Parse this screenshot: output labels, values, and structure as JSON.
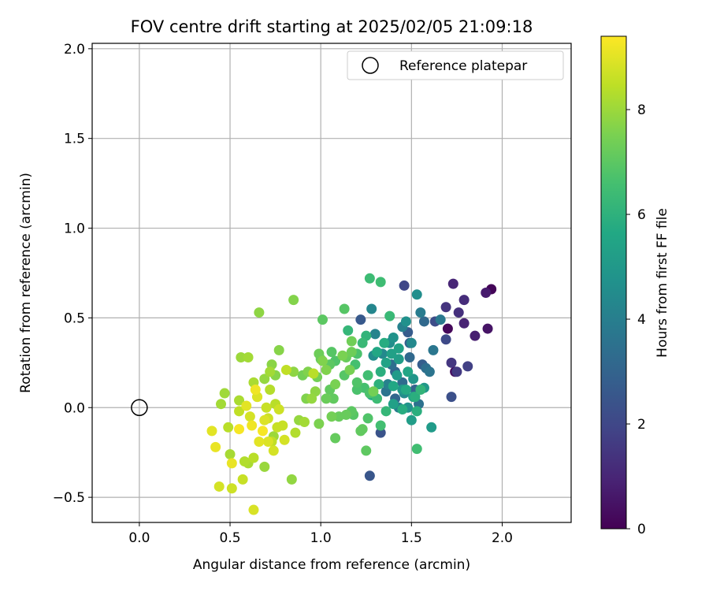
{
  "chart_data": {
    "type": "scatter",
    "title": "FOV centre drift starting at 2025/02/05 21:09:18",
    "xlabel": "Angular distance from reference (arcmin)",
    "ylabel": "Rotation from reference (arcmin)",
    "xlim": [
      -0.26,
      2.38
    ],
    "ylim": [
      -0.64,
      2.03
    ],
    "xticks": [
      0.0,
      0.5,
      1.0,
      1.5,
      2.0
    ],
    "xtick_labels": [
      "0.0",
      "0.5",
      "1.0",
      "1.5",
      "2.0"
    ],
    "yticks": [
      -0.5,
      0.0,
      0.5,
      1.0,
      1.5,
      2.0
    ],
    "ytick_labels": [
      "−0.5",
      "0.0",
      "0.5",
      "1.0",
      "1.5",
      "2.0"
    ],
    "grid": true,
    "legend": {
      "placement": "top-right",
      "entries": [
        "Reference platepar"
      ]
    },
    "reference_point": {
      "x": 0.0,
      "y": 0.0,
      "label": "Reference platepar"
    },
    "colorbar": {
      "label": "Hours from first FF file",
      "colormap": "viridis",
      "range": [
        0,
        9.4
      ],
      "ticks": [
        0,
        2,
        4,
        6,
        8
      ],
      "tick_labels": [
        "0",
        "2",
        "4",
        "6",
        "8"
      ]
    },
    "points": [
      {
        "x": 1.94,
        "y": 0.66,
        "hours": 0.1
      },
      {
        "x": 1.7,
        "y": 0.44,
        "hours": 0.2
      },
      {
        "x": 1.74,
        "y": 0.2,
        "hours": 0.3
      },
      {
        "x": 1.92,
        "y": 0.44,
        "hours": 0.5
      },
      {
        "x": 1.91,
        "y": 0.64,
        "hours": 0.7
      },
      {
        "x": 1.85,
        "y": 0.4,
        "hours": 0.8
      },
      {
        "x": 1.79,
        "y": 0.47,
        "hours": 0.9
      },
      {
        "x": 1.73,
        "y": 0.69,
        "hours": 1.0
      },
      {
        "x": 1.79,
        "y": 0.6,
        "hours": 1.2
      },
      {
        "x": 1.76,
        "y": 0.53,
        "hours": 1.3
      },
      {
        "x": 1.69,
        "y": 0.56,
        "hours": 1.4
      },
      {
        "x": 1.72,
        "y": 0.25,
        "hours": 1.5
      },
      {
        "x": 1.75,
        "y": 0.2,
        "hours": 1.6
      },
      {
        "x": 1.81,
        "y": 0.23,
        "hours": 1.8
      },
      {
        "x": 1.46,
        "y": 0.68,
        "hours": 2.0
      },
      {
        "x": 1.69,
        "y": 0.38,
        "hours": 2.1
      },
      {
        "x": 1.63,
        "y": 0.48,
        "hours": 2.2
      },
      {
        "x": 1.72,
        "y": 0.06,
        "hours": 2.3
      },
      {
        "x": 1.33,
        "y": -0.14,
        "hours": 2.4
      },
      {
        "x": 1.27,
        "y": -0.38,
        "hours": 2.5
      },
      {
        "x": 1.22,
        "y": 0.49,
        "hours": 2.6
      },
      {
        "x": 1.48,
        "y": 0.42,
        "hours": 2.7
      },
      {
        "x": 1.56,
        "y": 0.24,
        "hours": 2.8
      },
      {
        "x": 1.52,
        "y": 0.1,
        "hours": 3.0
      },
      {
        "x": 1.41,
        "y": 0.05,
        "hours": 3.1
      },
      {
        "x": 1.49,
        "y": 0.28,
        "hours": 3.2
      },
      {
        "x": 1.45,
        "y": 0.14,
        "hours": 3.3
      },
      {
        "x": 1.39,
        "y": 0.24,
        "hours": 3.4
      },
      {
        "x": 1.54,
        "y": 0.02,
        "hours": 3.5
      },
      {
        "x": 1.6,
        "y": 0.2,
        "hours": 3.6
      },
      {
        "x": 1.62,
        "y": 0.32,
        "hours": 3.7
      },
      {
        "x": 1.66,
        "y": 0.49,
        "hours": 3.8
      },
      {
        "x": 1.55,
        "y": 0.53,
        "hours": 3.9
      },
      {
        "x": 1.43,
        "y": 0.0,
        "hours": 4.0
      },
      {
        "x": 1.37,
        "y": 0.13,
        "hours": 4.1
      },
      {
        "x": 1.3,
        "y": 0.41,
        "hours": 4.2
      },
      {
        "x": 1.28,
        "y": 0.55,
        "hours": 4.3
      },
      {
        "x": 1.34,
        "y": 0.3,
        "hours": 4.4
      },
      {
        "x": 1.46,
        "y": 0.08,
        "hours": 4.5
      },
      {
        "x": 1.53,
        "y": 0.63,
        "hours": 4.6
      },
      {
        "x": 1.47,
        "y": 0.48,
        "hours": 4.7
      },
      {
        "x": 1.4,
        "y": 0.39,
        "hours": 4.8
      },
      {
        "x": 1.51,
        "y": 0.16,
        "hours": 4.9
      },
      {
        "x": 1.57,
        "y": 0.11,
        "hours": 5.0
      },
      {
        "x": 1.61,
        "y": -0.11,
        "hours": 5.1
      },
      {
        "x": 1.5,
        "y": -0.07,
        "hours": 5.2
      },
      {
        "x": 1.4,
        "y": 0.02,
        "hours": 5.3
      },
      {
        "x": 1.36,
        "y": 0.25,
        "hours": 5.4
      },
      {
        "x": 1.48,
        "y": 0.2,
        "hours": 5.5
      },
      {
        "x": 1.31,
        "y": 0.31,
        "hours": 5.6
      },
      {
        "x": 1.28,
        "y": 0.07,
        "hours": 5.7
      },
      {
        "x": 1.45,
        "y": -0.01,
        "hours": 5.8
      },
      {
        "x": 1.53,
        "y": -0.02,
        "hours": 5.9
      },
      {
        "x": 1.32,
        "y": 0.13,
        "hours": 6.0
      },
      {
        "x": 1.25,
        "y": 0.4,
        "hours": 6.1
      },
      {
        "x": 1.15,
        "y": 0.43,
        "hours": 6.2
      },
      {
        "x": 1.38,
        "y": 0.51,
        "hours": 6.3
      },
      {
        "x": 1.27,
        "y": 0.72,
        "hours": 6.4
      },
      {
        "x": 1.33,
        "y": 0.7,
        "hours": 6.45
      },
      {
        "x": 1.53,
        "y": -0.23,
        "hours": 6.5
      },
      {
        "x": 1.33,
        "y": -0.1,
        "hours": 6.55
      },
      {
        "x": 1.24,
        "y": 0.11,
        "hours": 6.6
      },
      {
        "x": 1.2,
        "y": 0.3,
        "hours": 6.7
      },
      {
        "x": 1.08,
        "y": 0.26,
        "hours": 6.8
      },
      {
        "x": 1.13,
        "y": 0.55,
        "hours": 6.9
      },
      {
        "x": 1.01,
        "y": 0.49,
        "hours": 7.0
      },
      {
        "x": 1.25,
        "y": -0.24,
        "hours": 7.05
      },
      {
        "x": 1.22,
        "y": -0.13,
        "hours": 7.1
      },
      {
        "x": 1.08,
        "y": -0.17,
        "hours": 7.15
      },
      {
        "x": 1.14,
        "y": -0.04,
        "hours": 7.2
      },
      {
        "x": 1.03,
        "y": 0.05,
        "hours": 7.25
      },
      {
        "x": 0.99,
        "y": 0.3,
        "hours": 7.3
      },
      {
        "x": 1.17,
        "y": 0.37,
        "hours": 7.35
      },
      {
        "x": 1.29,
        "y": 0.09,
        "hours": 7.4
      },
      {
        "x": 1.16,
        "y": 0.21,
        "hours": 7.45
      },
      {
        "x": 1.08,
        "y": 0.13,
        "hours": 7.5
      },
      {
        "x": 0.99,
        "y": -0.09,
        "hours": 7.55
      },
      {
        "x": 0.93,
        "y": 0.2,
        "hours": 7.6
      },
      {
        "x": 0.85,
        "y": 0.6,
        "hours": 7.65
      },
      {
        "x": 0.77,
        "y": 0.32,
        "hours": 7.7
      },
      {
        "x": 0.73,
        "y": 0.24,
        "hours": 7.75
      },
      {
        "x": 0.66,
        "y": 0.53,
        "hours": 7.8
      },
      {
        "x": 0.84,
        "y": -0.4,
        "hours": 7.85
      },
      {
        "x": 0.88,
        "y": -0.07,
        "hours": 7.9
      },
      {
        "x": 0.69,
        "y": -0.33,
        "hours": 7.95
      },
      {
        "x": 0.56,
        "y": 0.28,
        "hours": 8.0
      },
      {
        "x": 0.47,
        "y": 0.08,
        "hours": 8.05
      },
      {
        "x": 0.45,
        "y": 0.02,
        "hours": 8.1
      },
      {
        "x": 0.5,
        "y": -0.26,
        "hours": 8.15
      },
      {
        "x": 0.63,
        "y": 0.14,
        "hours": 8.2
      },
      {
        "x": 0.58,
        "y": -0.3,
        "hours": 8.3
      },
      {
        "x": 0.72,
        "y": 0.1,
        "hours": 8.35
      },
      {
        "x": 0.96,
        "y": 0.19,
        "hours": 8.4
      },
      {
        "x": 0.81,
        "y": 0.21,
        "hours": 8.5
      },
      {
        "x": 0.57,
        "y": -0.4,
        "hours": 8.6
      },
      {
        "x": 0.51,
        "y": -0.45,
        "hours": 8.7
      },
      {
        "x": 0.44,
        "y": -0.44,
        "hours": 8.8
      },
      {
        "x": 0.63,
        "y": -0.57,
        "hours": 8.85
      },
      {
        "x": 0.4,
        "y": -0.13,
        "hours": 9.0
      },
      {
        "x": 0.42,
        "y": -0.22,
        "hours": 9.1
      },
      {
        "x": 0.64,
        "y": 0.1,
        "hours": 9.2
      },
      {
        "x": 0.68,
        "y": -0.13,
        "hours": 9.3
      },
      {
        "x": 1.23,
        "y": 0.36,
        "hours": 6.3
      },
      {
        "x": 1.19,
        "y": 0.24,
        "hours": 6.6
      },
      {
        "x": 1.06,
        "y": 0.31,
        "hours": 6.9
      },
      {
        "x": 0.98,
        "y": 0.17,
        "hours": 7.4
      },
      {
        "x": 1.07,
        "y": 0.05,
        "hours": 7.1
      },
      {
        "x": 1.17,
        "y": -0.02,
        "hours": 7.0
      },
      {
        "x": 1.27,
        "y": 0.08,
        "hours": 6.7
      },
      {
        "x": 1.36,
        "y": -0.02,
        "hours": 6.2
      },
      {
        "x": 1.43,
        "y": 0.33,
        "hours": 5.4
      },
      {
        "x": 1.35,
        "y": 0.36,
        "hours": 5.8
      },
      {
        "x": 1.43,
        "y": 0.27,
        "hours": 5.2
      },
      {
        "x": 1.4,
        "y": 0.12,
        "hours": 5.6
      },
      {
        "x": 1.48,
        "y": 0.0,
        "hours": 4.8
      },
      {
        "x": 1.5,
        "y": 0.36,
        "hours": 4.4
      },
      {
        "x": 1.45,
        "y": 0.45,
        "hours": 4.1
      },
      {
        "x": 1.38,
        "y": 0.36,
        "hours": 4.6
      },
      {
        "x": 1.33,
        "y": 0.2,
        "hours": 5.9
      },
      {
        "x": 1.26,
        "y": 0.18,
        "hours": 6.5
      },
      {
        "x": 1.14,
        "y": 0.28,
        "hours": 7.2
      },
      {
        "x": 1.03,
        "y": 0.21,
        "hours": 7.6
      },
      {
        "x": 0.95,
        "y": 0.05,
        "hours": 7.9
      },
      {
        "x": 0.91,
        "y": -0.08,
        "hours": 8.1
      },
      {
        "x": 0.86,
        "y": -0.14,
        "hours": 8.3
      },
      {
        "x": 0.79,
        "y": -0.1,
        "hours": 8.6
      },
      {
        "x": 0.74,
        "y": -0.24,
        "hours": 8.8
      },
      {
        "x": 0.71,
        "y": -0.06,
        "hours": 8.7
      },
      {
        "x": 0.75,
        "y": 0.02,
        "hours": 8.4
      },
      {
        "x": 0.69,
        "y": -0.07,
        "hours": 8.9
      },
      {
        "x": 0.66,
        "y": -0.19,
        "hours": 9.0
      },
      {
        "x": 0.62,
        "y": -0.1,
        "hours": 9.2
      },
      {
        "x": 0.55,
        "y": -0.12,
        "hours": 9.3
      },
      {
        "x": 0.51,
        "y": -0.31,
        "hours": 9.1
      },
      {
        "x": 0.59,
        "y": 0.01,
        "hours": 9.0
      },
      {
        "x": 0.65,
        "y": 0.06,
        "hours": 8.9
      },
      {
        "x": 0.61,
        "y": -0.05,
        "hours": 8.8
      },
      {
        "x": 0.55,
        "y": -0.02,
        "hours": 8.5
      },
      {
        "x": 0.49,
        "y": -0.11,
        "hours": 8.4
      },
      {
        "x": 0.55,
        "y": 0.04,
        "hours": 8.2
      },
      {
        "x": 0.6,
        "y": 0.28,
        "hours": 8.1
      },
      {
        "x": 0.65,
        "y": 0.06,
        "hours": 8.3
      },
      {
        "x": 0.7,
        "y": 0.0,
        "hours": 8.6
      },
      {
        "x": 0.77,
        "y": -0.01,
        "hours": 8.7
      },
      {
        "x": 0.71,
        "y": -0.19,
        "hours": 8.9
      },
      {
        "x": 0.63,
        "y": -0.28,
        "hours": 8.4
      },
      {
        "x": 0.6,
        "y": -0.31,
        "hours": 8.2
      },
      {
        "x": 0.74,
        "y": -0.16,
        "hours": 8.0
      },
      {
        "x": 0.73,
        "y": -0.19,
        "hours": 8.5
      },
      {
        "x": 0.76,
        "y": -0.11,
        "hours": 8.6
      },
      {
        "x": 0.8,
        "y": -0.18,
        "hours": 8.8
      },
      {
        "x": 0.69,
        "y": 0.16,
        "hours": 7.9
      },
      {
        "x": 0.75,
        "y": 0.18,
        "hours": 7.7
      },
      {
        "x": 0.72,
        "y": 0.2,
        "hours": 8.1
      },
      {
        "x": 0.85,
        "y": 0.2,
        "hours": 7.8
      },
      {
        "x": 0.92,
        "y": 0.05,
        "hours": 7.6
      },
      {
        "x": 1.0,
        "y": 0.27,
        "hours": 7.2
      },
      {
        "x": 1.05,
        "y": 0.24,
        "hours": 7.0
      },
      {
        "x": 1.13,
        "y": 0.18,
        "hours": 6.9
      },
      {
        "x": 1.2,
        "y": 0.1,
        "hours": 6.7
      },
      {
        "x": 1.26,
        "y": -0.06,
        "hours": 6.8
      },
      {
        "x": 1.1,
        "y": -0.05,
        "hours": 7.2
      },
      {
        "x": 1.18,
        "y": -0.04,
        "hours": 6.9
      },
      {
        "x": 1.23,
        "y": -0.12,
        "hours": 7.1
      },
      {
        "x": 1.31,
        "y": 0.05,
        "hours": 6.4
      },
      {
        "x": 1.39,
        "y": 0.3,
        "hours": 5.3
      },
      {
        "x": 1.42,
        "y": 0.18,
        "hours": 5.1
      },
      {
        "x": 1.47,
        "y": 0.1,
        "hours": 5.7
      },
      {
        "x": 1.52,
        "y": 0.06,
        "hours": 5.9
      },
      {
        "x": 1.55,
        "y": 0.1,
        "hours": 6.1
      },
      {
        "x": 1.51,
        "y": 0.06,
        "hours": 5.5
      },
      {
        "x": 1.45,
        "y": 0.1,
        "hours": 5.0
      },
      {
        "x": 1.58,
        "y": 0.22,
        "hours": 3.4
      },
      {
        "x": 1.57,
        "y": 0.48,
        "hours": 3.2
      },
      {
        "x": 1.49,
        "y": 0.36,
        "hours": 2.9
      },
      {
        "x": 1.41,
        "y": 0.2,
        "hours": 3.1
      },
      {
        "x": 1.36,
        "y": 0.09,
        "hours": 3.6
      },
      {
        "x": 1.29,
        "y": 0.29,
        "hours": 4.6
      },
      {
        "x": 1.2,
        "y": 0.14,
        "hours": 6.8
      },
      {
        "x": 1.06,
        "y": -0.05,
        "hours": 7.4
      },
      {
        "x": 1.05,
        "y": 0.1,
        "hours": 7.1
      },
      {
        "x": 1.17,
        "y": 0.31,
        "hours": 7.3
      },
      {
        "x": 1.12,
        "y": 0.29,
        "hours": 7.5
      },
      {
        "x": 0.97,
        "y": 0.09,
        "hours": 7.8
      },
      {
        "x": 1.01,
        "y": 0.26,
        "hours": 7.6
      },
      {
        "x": 0.9,
        "y": 0.18,
        "hours": 7.4
      }
    ]
  }
}
